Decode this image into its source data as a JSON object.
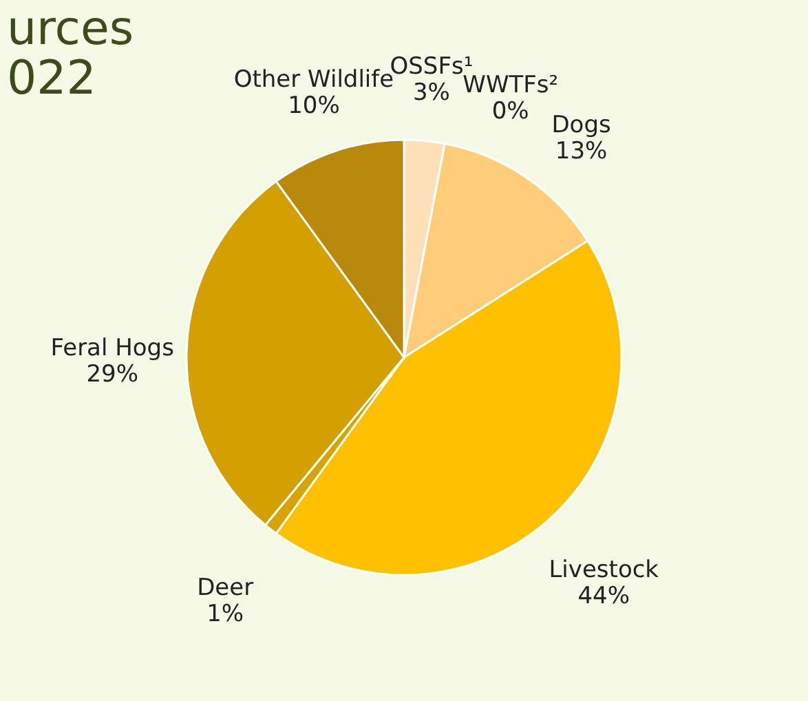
{
  "chart_data": {
    "type": "pie",
    "title": [
      "urces",
      "022"
    ],
    "categories": [
      "OSSFs¹",
      "WWTFs²",
      "Dogs",
      "Livestock",
      "Deer",
      "Feral Hogs",
      "Other Wildlife"
    ],
    "values": [
      3,
      0,
      13,
      44,
      1,
      29,
      10
    ],
    "colors": [
      "#fde0b8",
      "#fde0b8",
      "#ffcc77",
      "#ffc000",
      "#d9a300",
      "#d4a000",
      "#b8890a"
    ],
    "value_labels": [
      "3%",
      "0%",
      "13%",
      "44%",
      "1%",
      "29%",
      "10%"
    ],
    "legend": false
  }
}
